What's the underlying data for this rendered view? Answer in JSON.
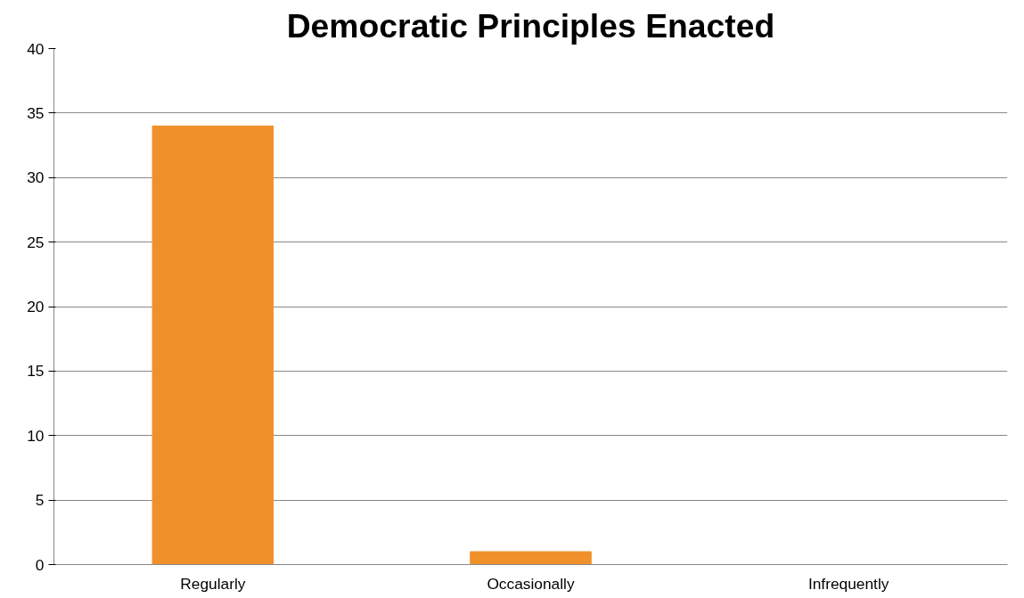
{
  "chart_data": {
    "type": "bar",
    "title": "Democratic Principles Enacted",
    "categories": [
      "Regularly",
      "Occasionally",
      "Infrequently"
    ],
    "values": [
      34,
      1,
      0
    ],
    "color": "#f0902a",
    "ylim": [
      0,
      40
    ],
    "yticks": [
      0,
      5,
      10,
      15,
      20,
      25,
      30,
      35,
      40
    ],
    "grid": "y"
  }
}
